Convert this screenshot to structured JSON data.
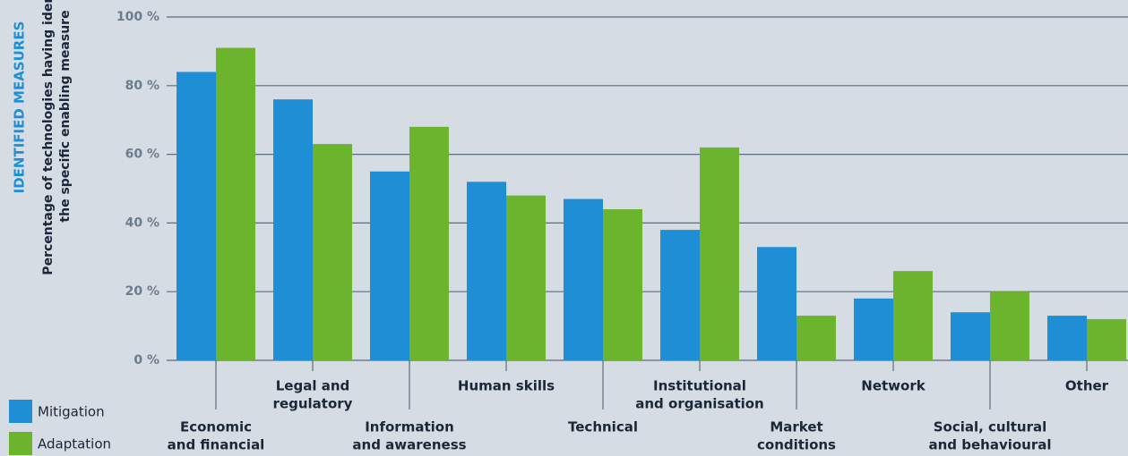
{
  "chart_data": {
    "type": "bar",
    "section_title": "IDENTIFIED MEASURES",
    "y_label": [
      "Percentage of technologies having identified",
      "the specific enabling measure"
    ],
    "categories": [
      [
        "Economic",
        "and financial"
      ],
      [
        "Legal and",
        "regulatory"
      ],
      [
        "Information",
        "and awareness"
      ],
      [
        "Human skills"
      ],
      [
        "Technical"
      ],
      [
        "Institutional",
        "and organisation"
      ],
      [
        "Market",
        "conditions"
      ],
      [
        "Network"
      ],
      [
        "Social, cultural",
        "and behavioural"
      ],
      [
        "Other"
      ]
    ],
    "series": [
      {
        "name": "Mitigation",
        "color": "#1e8fd5",
        "values": [
          84,
          76,
          55,
          52,
          47,
          38,
          33,
          18,
          14,
          13
        ]
      },
      {
        "name": "Adaptation",
        "color": "#6cb42d",
        "values": [
          91,
          63,
          68,
          48,
          44,
          62,
          13,
          26,
          20,
          12
        ]
      }
    ],
    "ylim": [
      0,
      100
    ],
    "yticks": [
      {
        "value": 0,
        "label": "0 %"
      },
      {
        "value": 20,
        "label": "20 %"
      },
      {
        "value": 40,
        "label": "40 %"
      },
      {
        "value": 60,
        "label": "60 %"
      },
      {
        "value": 80,
        "label": "80 %"
      },
      {
        "value": 100,
        "label": "100 %"
      }
    ],
    "grid": true
  }
}
